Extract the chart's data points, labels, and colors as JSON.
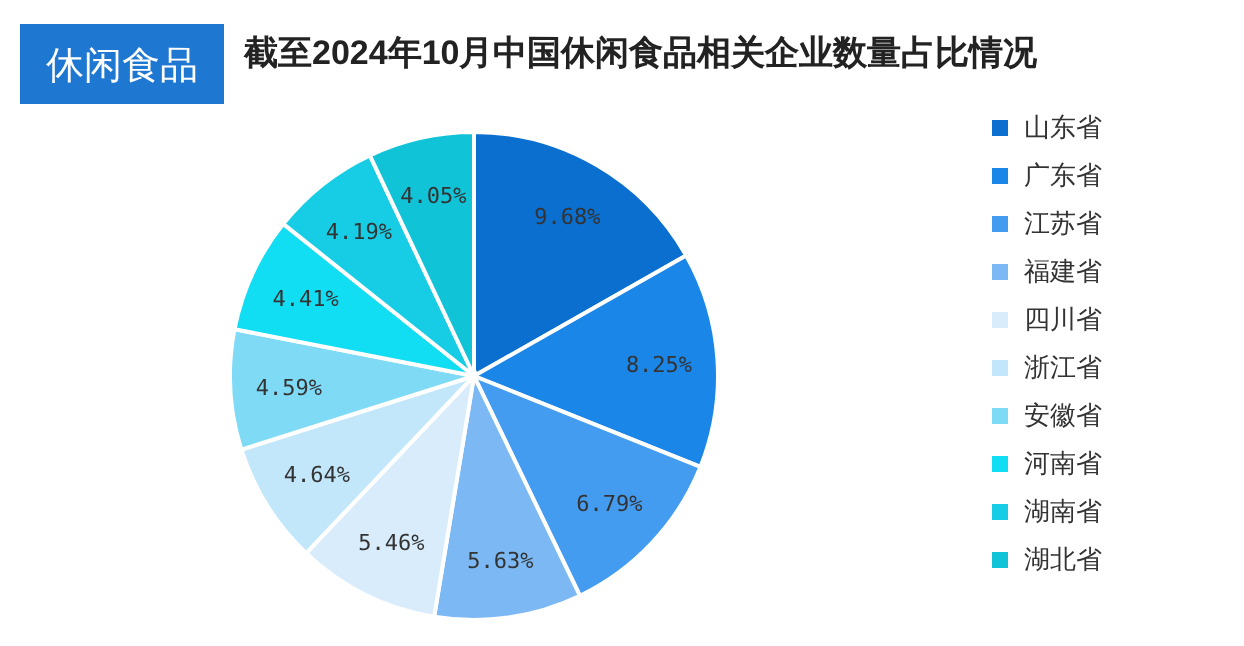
{
  "chart_data": {
    "type": "pie",
    "title": "截至2024年10月中国休闲食品相关企业数量占比情况",
    "annotations": [
      "休闲食品"
    ],
    "categories": [
      "山东省",
      "广东省",
      "江苏省",
      "福建省",
      "四川省",
      "浙江省",
      "安徽省",
      "河南省",
      "湖南省",
      "湖北省"
    ],
    "values": [
      9.68,
      8.25,
      6.79,
      5.63,
      5.46,
      4.64,
      4.59,
      4.41,
      4.19,
      4.05
    ],
    "value_labels": [
      "9.68%",
      "8.25%",
      "6.79%",
      "5.63%",
      "5.46%",
      "4.64%",
      "4.59%",
      "4.41%",
      "4.19%",
      "4.05%"
    ],
    "colors": [
      "#0b6fcf",
      "#1a86e8",
      "#449cf0",
      "#7cb9f4",
      "#d8ecfb",
      "#c2e7fb",
      "#7fdaf6",
      "#12def3",
      "#16cde5",
      "#11c3d6"
    ],
    "legend": "right"
  }
}
